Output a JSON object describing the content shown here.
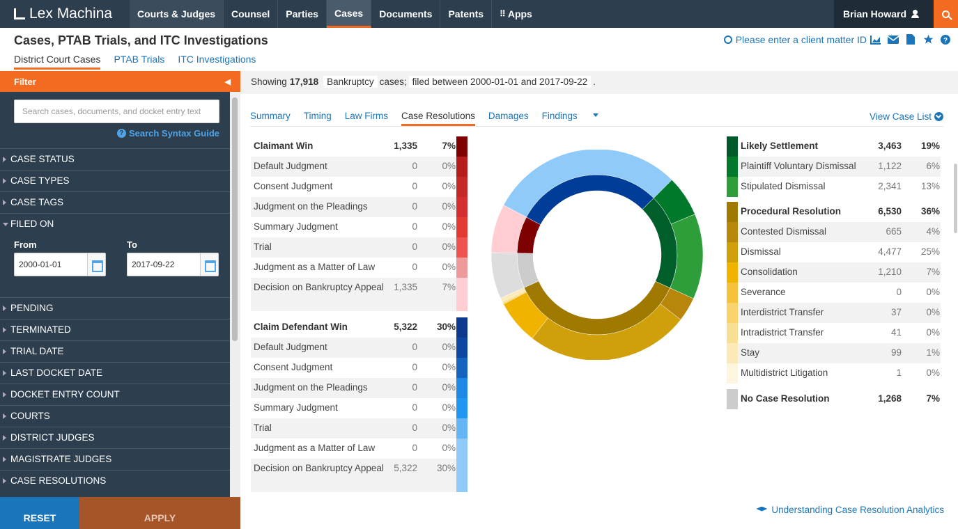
{
  "nav": {
    "logo": "Lex Machina",
    "items": [
      {
        "label": "Courts & Judges"
      },
      {
        "label": "Counsel"
      },
      {
        "label": "Parties"
      },
      {
        "label": "Cases"
      },
      {
        "label": "Documents"
      },
      {
        "label": "Patents"
      },
      {
        "label": "Apps"
      }
    ],
    "user": "Brian Howard"
  },
  "header": {
    "title": "Cases, PTAB Trials, and ITC Investigations",
    "tabs": [
      "District Court Cases",
      "PTAB Trials",
      "ITC Investigations"
    ],
    "client_matter": "Please enter a client matter ID"
  },
  "sidebar": {
    "filter_label": "Filter",
    "search_placeholder": "Search cases, documents, and docket entry text",
    "syntax_guide": "Search Syntax Guide",
    "facets_top": [
      "CASE STATUS",
      "CASE TYPES",
      "CASE TAGS",
      "FILED ON"
    ],
    "from_label": "From",
    "to_label": "To",
    "from_value": "2000-01-01",
    "to_value": "2017-09-22",
    "facets_bottom": [
      "PENDING",
      "TERMINATED",
      "TRIAL DATE",
      "LAST DOCKET DATE",
      "DOCKET ENTRY COUNT",
      "COURTS",
      "DISTRICT JUDGES",
      "MAGISTRATE JUDGES",
      "CASE RESOLUTIONS"
    ],
    "reset": "RESET",
    "apply": "APPLY"
  },
  "summary": {
    "prefix": "Showing",
    "count": "17,918",
    "case_type": "Bankruptcy",
    "mid": "cases;",
    "filed": "filed between 2000-01-01 and 2017-09-22",
    "suffix": "."
  },
  "tabs": {
    "items": [
      "Summary",
      "Timing",
      "Law Firms",
      "Case Resolutions",
      "Damages",
      "Findings"
    ],
    "view_list": "View Case List"
  },
  "claimant_win": {
    "head": {
      "label": "Claimant Win",
      "count": "1,335",
      "pct": "7%"
    },
    "rows": [
      {
        "label": "Default Judgment",
        "count": "0",
        "pct": "0%",
        "color": "#b71c1c"
      },
      {
        "label": "Consent Judgment",
        "count": "0",
        "pct": "0%",
        "color": "#c62828"
      },
      {
        "label": "Judgment on the Pleadings",
        "count": "0",
        "pct": "0%",
        "color": "#d32f2f"
      },
      {
        "label": "Summary Judgment",
        "count": "0",
        "pct": "0%",
        "color": "#e53935"
      },
      {
        "label": "Trial",
        "count": "0",
        "pct": "0%",
        "color": "#ef5350"
      },
      {
        "label": "Judgment as a Matter of Law",
        "count": "0",
        "pct": "0%",
        "color": "#ef9a9a"
      },
      {
        "label": "Decision on Bankruptcy Appeal",
        "count": "1,335",
        "pct": "7%",
        "color": "#ffcdd2"
      }
    ],
    "head_color": "#7f0000"
  },
  "defendant_win": {
    "head": {
      "label": "Claim Defendant Win",
      "count": "5,322",
      "pct": "30%"
    },
    "rows": [
      {
        "label": "Default Judgment",
        "count": "0",
        "pct": "0%",
        "color": "#0d47a1"
      },
      {
        "label": "Consent Judgment",
        "count": "0",
        "pct": "0%",
        "color": "#1565c0"
      },
      {
        "label": "Judgment on the Pleadings",
        "count": "0",
        "pct": "0%",
        "color": "#1e88e5"
      },
      {
        "label": "Summary Judgment",
        "count": "0",
        "pct": "0%",
        "color": "#2196f3"
      },
      {
        "label": "Trial",
        "count": "0",
        "pct": "0%",
        "color": "#64b5f6"
      },
      {
        "label": "Judgment as a Matter of Law",
        "count": "0",
        "pct": "0%",
        "color": "#90caf9"
      },
      {
        "label": "Decision on Bankruptcy Appeal",
        "count": "5,322",
        "pct": "30%",
        "color": "#90caf9"
      }
    ],
    "head_color": "#0d3a8c"
  },
  "likely_settlement": {
    "head": {
      "label": "Likely Settlement",
      "count": "3,463",
      "pct": "19%"
    },
    "rows": [
      {
        "label": "Plaintiff Voluntary Dismissal",
        "count": "1,122",
        "pct": "6%",
        "color": "#00792b"
      },
      {
        "label": "Stipulated Dismissal",
        "count": "2,341",
        "pct": "13%",
        "color": "#2e9e3a"
      }
    ],
    "head_color": "#005a2a"
  },
  "procedural": {
    "head": {
      "label": "Procedural Resolution",
      "count": "6,530",
      "pct": "36%"
    },
    "rows": [
      {
        "label": "Contested Dismissal",
        "count": "665",
        "pct": "4%",
        "color": "#b8860b"
      },
      {
        "label": "Dismissal",
        "count": "4,477",
        "pct": "25%",
        "color": "#cfa00a"
      },
      {
        "label": "Consolidation",
        "count": "1,210",
        "pct": "7%",
        "color": "#f0b400"
      },
      {
        "label": "Severance",
        "count": "0",
        "pct": "0%",
        "color": "#f5c33a"
      },
      {
        "label": "Interdistrict Transfer",
        "count": "37",
        "pct": "0%",
        "color": "#f8d36b"
      },
      {
        "label": "Intradistrict Transfer",
        "count": "41",
        "pct": "0%",
        "color": "#f9df93"
      },
      {
        "label": "Stay",
        "count": "99",
        "pct": "1%",
        "color": "#fbeab8"
      },
      {
        "label": "Multidistrict Litigation",
        "count": "1",
        "pct": "0%",
        "color": "#fdf5de"
      }
    ],
    "head_color": "#a07a00"
  },
  "no_resolution": {
    "label": "No Case Resolution",
    "count": "1,268",
    "pct": "7%",
    "color": "#cccccc"
  },
  "chart_data": {
    "type": "pie",
    "categories": [
      "Claimant Win",
      "Claim Defendant Win",
      "Likely Settlement",
      "Procedural Resolution",
      "No Case Resolution"
    ],
    "values": [
      1335,
      5322,
      3463,
      6530,
      1268
    ],
    "outer_ring": {
      "categories": [
        "Decision on Bankruptcy Appeal (Claimant)",
        "Decision on Bankruptcy Appeal (Defendant)",
        "Plaintiff Voluntary Dismissal",
        "Stipulated Dismissal",
        "Contested Dismissal",
        "Dismissal",
        "Consolidation",
        "Interdistrict Transfer",
        "Intradistrict Transfer",
        "Stay",
        "Multidistrict Litigation",
        "No Case Resolution"
      ],
      "values": [
        1335,
        5322,
        1122,
        2341,
        665,
        4477,
        1210,
        37,
        41,
        99,
        1,
        1268
      ]
    }
  },
  "footer_link": "Understanding Case Resolution Analytics"
}
